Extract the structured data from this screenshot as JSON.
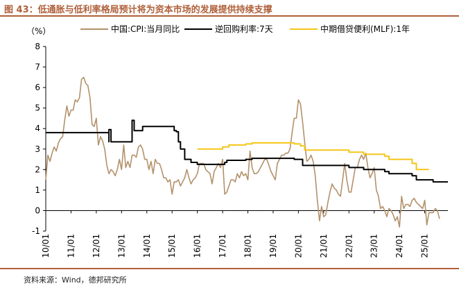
{
  "title": "图 43：低通胀与低利率格局预计将为资本市场的发展提供持续支撑",
  "source": "资料来源：Wind，德邦研究所",
  "chart_data": {
    "type": "line",
    "y_unit_label": "（%）",
    "ylim": [
      -1,
      8
    ],
    "yticks": [
      "-1",
      "0",
      "1",
      "2",
      "3",
      "4",
      "5",
      "6",
      "7",
      "8"
    ],
    "x_tick_labels": [
      "10/01",
      "11/01",
      "12/01",
      "13/01",
      "14/01",
      "15/01",
      "16/01",
      "17/01",
      "18/01",
      "19/01",
      "20/01",
      "21/01",
      "22/01",
      "23/01",
      "24/01",
      "25/01"
    ],
    "x_range": [
      "2010-01",
      "2025-12"
    ],
    "grid": false,
    "legend_position": "top",
    "series": [
      {
        "name": "中国:CPI:当月同比",
        "color": "#b3916b",
        "style": "line",
        "points": [
          [
            "2010-01",
            1.5
          ],
          [
            "2010-02",
            2.7
          ],
          [
            "2010-03",
            2.4
          ],
          [
            "2010-04",
            2.8
          ],
          [
            "2010-05",
            3.1
          ],
          [
            "2010-06",
            2.9
          ],
          [
            "2010-07",
            3.3
          ],
          [
            "2010-08",
            3.5
          ],
          [
            "2010-09",
            3.6
          ],
          [
            "2010-10",
            4.4
          ],
          [
            "2010-11",
            5.1
          ],
          [
            "2010-12",
            4.6
          ],
          [
            "2011-01",
            4.9
          ],
          [
            "2011-02",
            4.9
          ],
          [
            "2011-03",
            5.4
          ],
          [
            "2011-04",
            5.3
          ],
          [
            "2011-05",
            5.5
          ],
          [
            "2011-06",
            6.4
          ],
          [
            "2011-07",
            6.5
          ],
          [
            "2011-08",
            6.2
          ],
          [
            "2011-09",
            6.1
          ],
          [
            "2011-10",
            5.5
          ],
          [
            "2011-11",
            4.2
          ],
          [
            "2011-12",
            4.1
          ],
          [
            "2012-01",
            4.5
          ],
          [
            "2012-02",
            3.2
          ],
          [
            "2012-03",
            3.6
          ],
          [
            "2012-04",
            3.4
          ],
          [
            "2012-05",
            3.0
          ],
          [
            "2012-06",
            2.2
          ],
          [
            "2012-07",
            1.8
          ],
          [
            "2012-08",
            2.0
          ],
          [
            "2012-09",
            1.9
          ],
          [
            "2012-10",
            1.7
          ],
          [
            "2012-11",
            2.0
          ],
          [
            "2012-12",
            2.5
          ],
          [
            "2013-01",
            2.0
          ],
          [
            "2013-02",
            3.2
          ],
          [
            "2013-03",
            2.1
          ],
          [
            "2013-04",
            2.4
          ],
          [
            "2013-05",
            2.1
          ],
          [
            "2013-06",
            2.7
          ],
          [
            "2013-07",
            2.7
          ],
          [
            "2013-08",
            2.6
          ],
          [
            "2013-09",
            3.1
          ],
          [
            "2013-10",
            3.2
          ],
          [
            "2013-11",
            3.0
          ],
          [
            "2013-12",
            2.5
          ],
          [
            "2014-01",
            2.5
          ],
          [
            "2014-02",
            2.0
          ],
          [
            "2014-03",
            2.4
          ],
          [
            "2014-04",
            1.8
          ],
          [
            "2014-05",
            2.5
          ],
          [
            "2014-06",
            2.3
          ],
          [
            "2014-07",
            2.3
          ],
          [
            "2014-08",
            2.0
          ],
          [
            "2014-09",
            1.6
          ],
          [
            "2014-10",
            1.6
          ],
          [
            "2014-11",
            1.4
          ],
          [
            "2014-12",
            1.5
          ],
          [
            "2015-01",
            0.8
          ],
          [
            "2015-02",
            1.4
          ],
          [
            "2015-03",
            1.4
          ],
          [
            "2015-04",
            1.5
          ],
          [
            "2015-05",
            1.2
          ],
          [
            "2015-06",
            1.4
          ],
          [
            "2015-07",
            1.6
          ],
          [
            "2015-08",
            2.0
          ],
          [
            "2015-09",
            1.6
          ],
          [
            "2015-10",
            1.3
          ],
          [
            "2015-11",
            1.5
          ],
          [
            "2015-12",
            1.6
          ],
          [
            "2016-01",
            1.8
          ],
          [
            "2016-02",
            2.3
          ],
          [
            "2016-03",
            2.3
          ],
          [
            "2016-04",
            2.3
          ],
          [
            "2016-05",
            2.0
          ],
          [
            "2016-06",
            1.9
          ],
          [
            "2016-07",
            1.8
          ],
          [
            "2016-08",
            1.3
          ],
          [
            "2016-09",
            1.9
          ],
          [
            "2016-10",
            2.1
          ],
          [
            "2016-11",
            2.3
          ],
          [
            "2016-12",
            2.1
          ],
          [
            "2017-01",
            2.5
          ],
          [
            "2017-02",
            0.8
          ],
          [
            "2017-03",
            0.9
          ],
          [
            "2017-04",
            1.2
          ],
          [
            "2017-05",
            1.5
          ],
          [
            "2017-06",
            1.5
          ],
          [
            "2017-07",
            1.4
          ],
          [
            "2017-08",
            1.8
          ],
          [
            "2017-09",
            1.6
          ],
          [
            "2017-10",
            1.9
          ],
          [
            "2017-11",
            1.7
          ],
          [
            "2017-12",
            1.8
          ],
          [
            "2018-01",
            1.5
          ],
          [
            "2018-02",
            2.9
          ],
          [
            "2018-03",
            2.1
          ],
          [
            "2018-04",
            1.8
          ],
          [
            "2018-05",
            1.8
          ],
          [
            "2018-06",
            1.9
          ],
          [
            "2018-07",
            2.1
          ],
          [
            "2018-08",
            2.3
          ],
          [
            "2018-09",
            2.5
          ],
          [
            "2018-10",
            2.5
          ],
          [
            "2018-11",
            2.2
          ],
          [
            "2018-12",
            1.9
          ],
          [
            "2019-01",
            1.7
          ],
          [
            "2019-02",
            1.5
          ],
          [
            "2019-03",
            2.3
          ],
          [
            "2019-04",
            2.5
          ],
          [
            "2019-05",
            2.7
          ],
          [
            "2019-06",
            2.7
          ],
          [
            "2019-07",
            2.8
          ],
          [
            "2019-08",
            2.8
          ],
          [
            "2019-09",
            3.0
          ],
          [
            "2019-10",
            3.8
          ],
          [
            "2019-11",
            4.5
          ],
          [
            "2019-12",
            4.5
          ],
          [
            "2020-01",
            5.4
          ],
          [
            "2020-02",
            5.2
          ],
          [
            "2020-03",
            4.3
          ],
          [
            "2020-04",
            3.3
          ],
          [
            "2020-05",
            2.4
          ],
          [
            "2020-06",
            2.5
          ],
          [
            "2020-07",
            2.7
          ],
          [
            "2020-08",
            2.4
          ],
          [
            "2020-09",
            1.7
          ],
          [
            "2020-10",
            0.5
          ],
          [
            "2020-11",
            -0.5
          ],
          [
            "2020-12",
            0.2
          ],
          [
            "2021-01",
            -0.3
          ],
          [
            "2021-02",
            -0.2
          ],
          [
            "2021-03",
            0.4
          ],
          [
            "2021-04",
            0.9
          ],
          [
            "2021-05",
            1.3
          ],
          [
            "2021-06",
            1.1
          ],
          [
            "2021-07",
            1.0
          ],
          [
            "2021-08",
            0.8
          ],
          [
            "2021-09",
            0.7
          ],
          [
            "2021-10",
            1.5
          ],
          [
            "2021-11",
            2.3
          ],
          [
            "2021-12",
            1.5
          ],
          [
            "2022-01",
            0.9
          ],
          [
            "2022-02",
            0.9
          ],
          [
            "2022-03",
            1.5
          ],
          [
            "2022-04",
            2.1
          ],
          [
            "2022-05",
            2.1
          ],
          [
            "2022-06",
            2.5
          ],
          [
            "2022-07",
            2.7
          ],
          [
            "2022-08",
            2.5
          ],
          [
            "2022-09",
            2.8
          ],
          [
            "2022-10",
            2.1
          ],
          [
            "2022-11",
            1.6
          ],
          [
            "2022-12",
            1.8
          ],
          [
            "2023-01",
            2.1
          ],
          [
            "2023-02",
            1.0
          ],
          [
            "2023-03",
            0.7
          ],
          [
            "2023-04",
            0.1
          ],
          [
            "2023-05",
            0.2
          ],
          [
            "2023-06",
            0.0
          ],
          [
            "2023-07",
            -0.3
          ],
          [
            "2023-08",
            0.1
          ],
          [
            "2023-09",
            0.0
          ],
          [
            "2023-10",
            -0.2
          ],
          [
            "2023-11",
            -0.5
          ],
          [
            "2023-12",
            -0.3
          ],
          [
            "2024-01",
            -0.8
          ],
          [
            "2024-02",
            0.7
          ],
          [
            "2024-03",
            0.1
          ],
          [
            "2024-04",
            0.3
          ],
          [
            "2024-05",
            0.3
          ],
          [
            "2024-06",
            0.2
          ],
          [
            "2024-07",
            0.5
          ],
          [
            "2024-08",
            0.6
          ],
          [
            "2024-09",
            0.4
          ],
          [
            "2024-10",
            0.3
          ],
          [
            "2024-11",
            0.2
          ],
          [
            "2024-12",
            0.1
          ],
          [
            "2025-01",
            0.5
          ],
          [
            "2025-02",
            -0.7
          ],
          [
            "2025-03",
            -0.1
          ],
          [
            "2025-04",
            -0.1
          ],
          [
            "2025-05",
            -0.1
          ],
          [
            "2025-06",
            0.1
          ],
          [
            "2025-07",
            0.0
          ],
          [
            "2025-08",
            -0.4
          ]
        ]
      },
      {
        "name": "逆回购利率:7天",
        "color": "#000000",
        "style": "step",
        "points": [
          [
            "2010-01",
            3.8
          ],
          [
            "2012-06",
            3.8
          ],
          [
            "2012-07",
            3.35
          ],
          [
            "2012-07",
            3.95
          ],
          [
            "2012-08",
            3.35
          ],
          [
            "2013-06",
            3.35
          ],
          [
            "2013-06",
            4.4
          ],
          [
            "2013-07",
            3.9
          ],
          [
            "2013-10",
            3.9
          ],
          [
            "2013-11",
            4.1
          ],
          [
            "2014-12",
            4.1
          ],
          [
            "2015-02",
            3.9
          ],
          [
            "2015-03",
            3.85
          ],
          [
            "2015-04",
            3.35
          ],
          [
            "2015-05",
            3.0
          ],
          [
            "2015-07",
            2.5
          ],
          [
            "2015-10",
            2.35
          ],
          [
            "2016-01",
            2.25
          ],
          [
            "2017-02",
            2.35
          ],
          [
            "2017-03",
            2.45
          ],
          [
            "2017-12",
            2.5
          ],
          [
            "2018-03",
            2.55
          ],
          [
            "2019-11",
            2.5
          ],
          [
            "2020-03",
            2.2
          ],
          [
            "2022-01",
            2.1
          ],
          [
            "2022-08",
            2.0
          ],
          [
            "2023-06",
            1.9
          ],
          [
            "2023-08",
            1.8
          ],
          [
            "2024-07",
            1.7
          ],
          [
            "2024-09",
            1.5
          ],
          [
            "2025-05",
            1.4
          ],
          [
            "2025-12",
            1.4
          ]
        ]
      },
      {
        "name": "中期借贷便利(MLF):1年",
        "color": "#f5c518",
        "style": "step",
        "points": [
          [
            "2016-01",
            3.0
          ],
          [
            "2017-01",
            3.1
          ],
          [
            "2017-04",
            3.2
          ],
          [
            "2017-12",
            3.25
          ],
          [
            "2018-03",
            3.3
          ],
          [
            "2019-11",
            3.25
          ],
          [
            "2020-02",
            3.15
          ],
          [
            "2020-04",
            2.95
          ],
          [
            "2022-01",
            2.85
          ],
          [
            "2022-08",
            2.75
          ],
          [
            "2023-06",
            2.65
          ],
          [
            "2023-08",
            2.5
          ],
          [
            "2024-07",
            2.3
          ],
          [
            "2024-09",
            2.0
          ],
          [
            "2025-03",
            2.0
          ]
        ]
      }
    ]
  }
}
